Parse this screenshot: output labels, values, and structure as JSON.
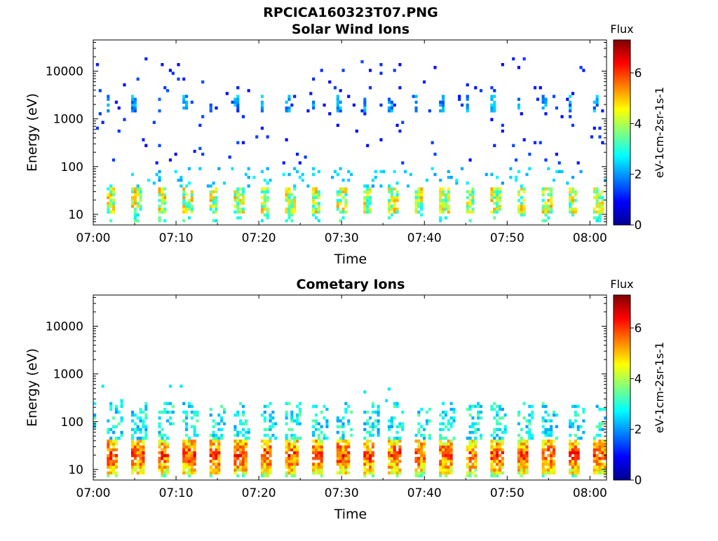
{
  "figure_title": "RPCICA160323T07.PNG",
  "chart_data": [
    {
      "type": "heatmap",
      "title": "Solar Wind Ions",
      "xlabel": "Time",
      "ylabel": "Energy (eV)",
      "x_ticks": [
        "07:00",
        "07:10",
        "07:20",
        "07:30",
        "07:40",
        "07:50",
        "08:00"
      ],
      "x_range_minutes": [
        0,
        62
      ],
      "y_scale": "log",
      "y_ticks": [
        "10",
        "100",
        "1000",
        "10000"
      ],
      "y_range": [
        6,
        45000
      ],
      "colorbar": {
        "title": "Flux",
        "label": "eV-1cm-2sr-1s-1",
        "range": [
          0,
          7.3
        ],
        "ticks": [
          "0",
          "2",
          "4",
          "6"
        ],
        "colormap": "jet"
      },
      "description_values": {
        "periodic_scan_cycle_minutes": 3.1,
        "low_energy_band_eV": [
          10,
          35
        ],
        "low_energy_peak_flux": 5.3,
        "high_energy_band_eV": [
          1300,
          3200
        ],
        "high_energy_peak_flux": 2.6,
        "sparse_background_flux": 1.5
      }
    },
    {
      "type": "heatmap",
      "title": "Cometary Ions",
      "xlabel": "Time",
      "ylabel": "Energy (eV)",
      "x_ticks": [
        "07:00",
        "07:10",
        "07:20",
        "07:30",
        "07:40",
        "07:50",
        "08:00"
      ],
      "x_range_minutes": [
        0,
        62
      ],
      "y_scale": "log",
      "y_ticks": [
        "10",
        "100",
        "1000",
        "10000"
      ],
      "y_range": [
        6,
        45000
      ],
      "colorbar": {
        "title": "Flux",
        "label": "eV-1cm-2sr-1s-1",
        "range": [
          0,
          7.3
        ],
        "ticks": [
          "0",
          "2",
          "4",
          "6"
        ],
        "colormap": "jet"
      },
      "description_values": {
        "periodic_scan_cycle_minutes": 3.1,
        "low_energy_band_eV": [
          8,
          40
        ],
        "low_energy_peak_flux": 6.8,
        "mid_energy_band_eV": [
          40,
          250
        ],
        "mid_energy_flux": 3.5
      }
    }
  ]
}
